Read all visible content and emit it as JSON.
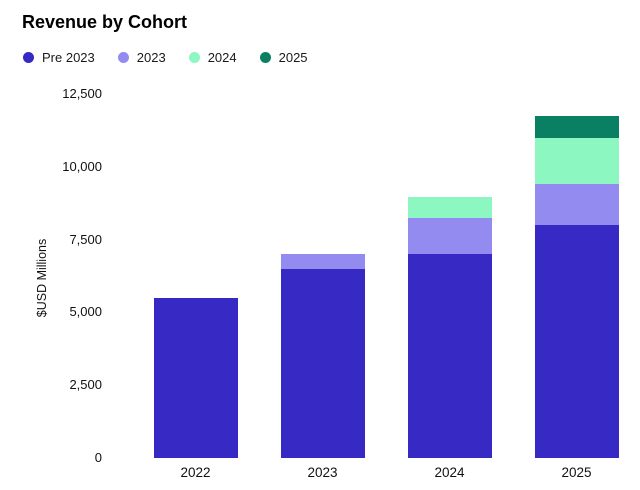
{
  "title": "Revenue by Cohort",
  "y_axis_title": "$USD Millions",
  "legend": {
    "items": [
      {
        "label": "Pre 2023",
        "color": "#3629c4"
      },
      {
        "label": "2023",
        "color": "#948bf0"
      },
      {
        "label": "2024",
        "color": "#8cf7c1"
      },
      {
        "label": "2025",
        "color": "#0a8062"
      }
    ]
  },
  "chart_data": {
    "type": "bar",
    "stacked": true,
    "title": "Revenue by Cohort",
    "xlabel": "",
    "ylabel": "$USD Millions",
    "categories": [
      "2022",
      "2023",
      "2024",
      "2025"
    ],
    "series": [
      {
        "name": "Pre 2023",
        "color": "#3629c4",
        "values": [
          5500,
          6500,
          7000,
          8000
        ]
      },
      {
        "name": "2023",
        "color": "#948bf0",
        "values": [
          0,
          500,
          1250,
          1400
        ]
      },
      {
        "name": "2024",
        "color": "#8cf7c1",
        "values": [
          0,
          0,
          700,
          1600
        ]
      },
      {
        "name": "2025",
        "color": "#0a8062",
        "values": [
          0,
          0,
          0,
          750
        ]
      }
    ],
    "totals": [
      5500,
      7000,
      8950,
      11750
    ],
    "y_ticks": [
      0,
      2500,
      5000,
      7500,
      10000,
      12500
    ],
    "y_tick_labels": [
      "0",
      "2,500",
      "5,000",
      "7,500",
      "10,000",
      "12,500"
    ],
    "ylim": [
      0,
      12500
    ],
    "grid": false,
    "axis_lines": false,
    "legend_position": "top-left",
    "background_color": "#ffffff"
  }
}
